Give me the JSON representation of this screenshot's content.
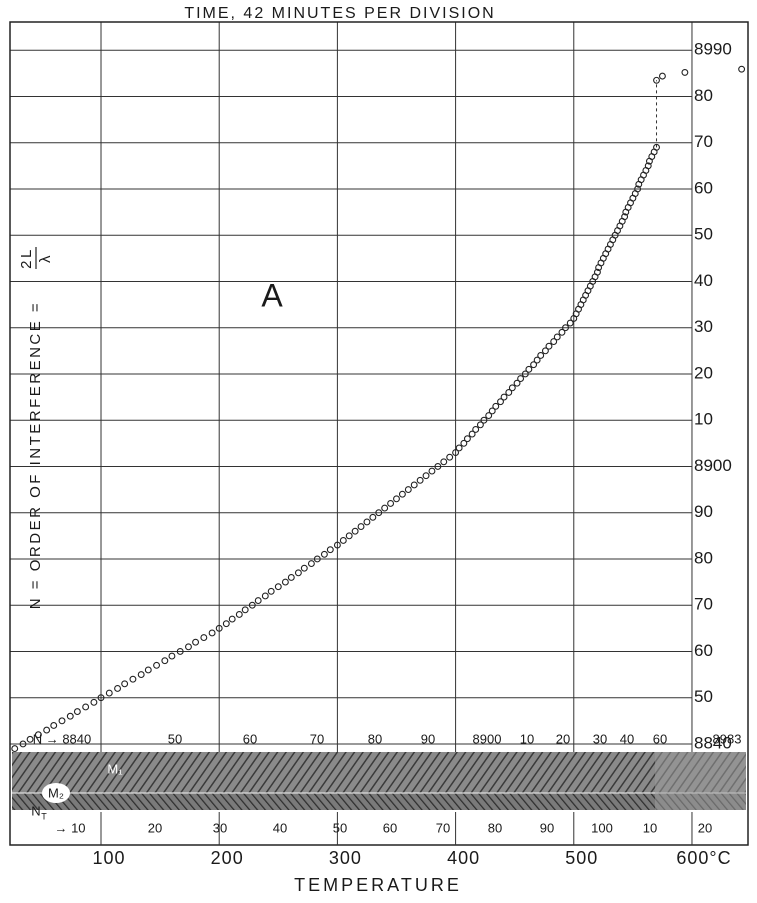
{
  "chart_data": {
    "type": "scatter",
    "title": "TIME, 42 MINUTES PER DIVISION",
    "x_label": "TEMPERATURE",
    "y_label": "N = ORDER OF INTERFERENCE =",
    "y_label_fraction": {
      "numerator": "2L",
      "denominator": "λ"
    },
    "annotation": "A",
    "grid": true,
    "xlim": [
      23,
      647.4
    ],
    "ylim": [
      8837.4,
      8996.1
    ],
    "xticks": [
      100,
      200,
      300,
      400,
      500,
      {
        "value": 600,
        "label": "600°C"
      }
    ],
    "yticks": [
      8840,
      {
        "value": 8850,
        "label": "50"
      },
      {
        "value": 8860,
        "label": "60"
      },
      {
        "value": 8870,
        "label": "70"
      },
      {
        "value": 8880,
        "label": "80"
      },
      {
        "value": 8890,
        "label": "90"
      },
      8900,
      {
        "value": 8910,
        "label": "10"
      },
      {
        "value": 8920,
        "label": "20"
      },
      {
        "value": 8930,
        "label": "30"
      },
      {
        "value": 8940,
        "label": "40"
      },
      {
        "value": 8950,
        "label": "50"
      },
      {
        "value": 8960,
        "label": "60"
      },
      {
        "value": 8970,
        "label": "70"
      },
      {
        "value": 8980,
        "label": "80"
      },
      8990
    ],
    "series": [
      {
        "color": "#222222",
        "x": [
          27,
          34,
          40,
          47,
          54,
          60,
          67,
          74,
          80,
          87,
          94,
          100,
          107,
          114,
          120,
          127,
          134,
          140,
          147,
          154,
          160,
          167,
          174,
          180,
          187,
          194,
          200,
          206,
          211,
          217,
          222,
          228,
          233,
          239,
          244,
          250,
          256,
          261,
          267,
          272,
          278,
          283,
          289,
          294,
          300,
          305,
          310,
          315,
          320,
          325,
          330,
          335,
          340,
          345,
          350,
          355,
          360,
          365,
          370,
          375,
          380,
          385,
          390,
          395,
          400,
          403,
          407,
          410,
          414,
          417,
          421,
          424,
          428,
          431,
          434,
          438,
          441,
          445,
          448,
          452,
          455,
          459,
          462,
          466,
          469,
          472,
          476,
          479,
          483,
          486,
          490,
          493,
          497,
          500,
          502,
          504,
          506,
          508,
          510,
          512,
          514,
          516,
          518,
          520,
          521,
          523,
          525,
          527,
          529,
          531,
          533,
          535,
          537,
          539,
          541,
          543,
          544,
          546,
          548,
          550,
          552,
          554,
          555,
          557,
          559,
          561,
          563,
          564,
          566,
          568,
          570
        ],
        "values": [
          8839,
          8840,
          8841,
          8842,
          8843,
          8844,
          8845,
          8846,
          8847,
          8848,
          8849,
          8850,
          8851,
          8852,
          8853,
          8854,
          8855,
          8856,
          8857,
          8858,
          8859,
          8860,
          8861,
          8862,
          8863,
          8864,
          8865,
          8866,
          8867,
          8868,
          8869,
          8870,
          8871,
          8872,
          8873,
          8874,
          8875,
          8876,
          8877,
          8878,
          8879,
          8880,
          8881,
          8882,
          8883,
          8884,
          8885,
          8886,
          8887,
          8888,
          8889,
          8890,
          8891,
          8892,
          8893,
          8894,
          8895,
          8896,
          8897,
          8898,
          8899,
          8900,
          8901,
          8902,
          8903,
          8904,
          8905,
          8906,
          8907,
          8908,
          8909,
          8910,
          8911,
          8912,
          8913,
          8914,
          8915,
          8916,
          8917,
          8918,
          8919,
          8920,
          8921,
          8922,
          8923,
          8924,
          8925,
          8926,
          8927,
          8928,
          8929,
          8930,
          8931,
          8932,
          8933,
          8934,
          8935,
          8936,
          8937,
          8938,
          8939,
          8940,
          8941,
          8942,
          8943,
          8944,
          8945,
          8946,
          8947,
          8948,
          8949,
          8950,
          8951,
          8952,
          8953,
          8954,
          8955,
          8956,
          8957,
          8958,
          8959,
          8960,
          8961,
          8962,
          8963,
          8964,
          8965,
          8966,
          8967,
          8968,
          8969
        ]
      },
      {
        "color": "#222222",
        "x": [
          570,
          575,
          594,
          642
        ],
        "values": [
          8983.5,
          8984.4,
          8985.2,
          8985.9
        ]
      }
    ],
    "fringe_strip": {
      "top_labels": [
        "N → 8840",
        "50",
        "60",
        "70",
        "80",
        "90",
        "8900",
        "10",
        "20",
        "30",
        "40",
        "60",
        "8983"
      ],
      "bottom_symbol": "N",
      "bottom_subscript": "T",
      "bottom_labels": [
        "→ 10",
        "20",
        "30",
        "40",
        "50",
        "60",
        "70",
        "80",
        "90",
        "100",
        "10",
        "20"
      ],
      "mirror_labels": [
        "M₁",
        "M₂"
      ]
    }
  }
}
